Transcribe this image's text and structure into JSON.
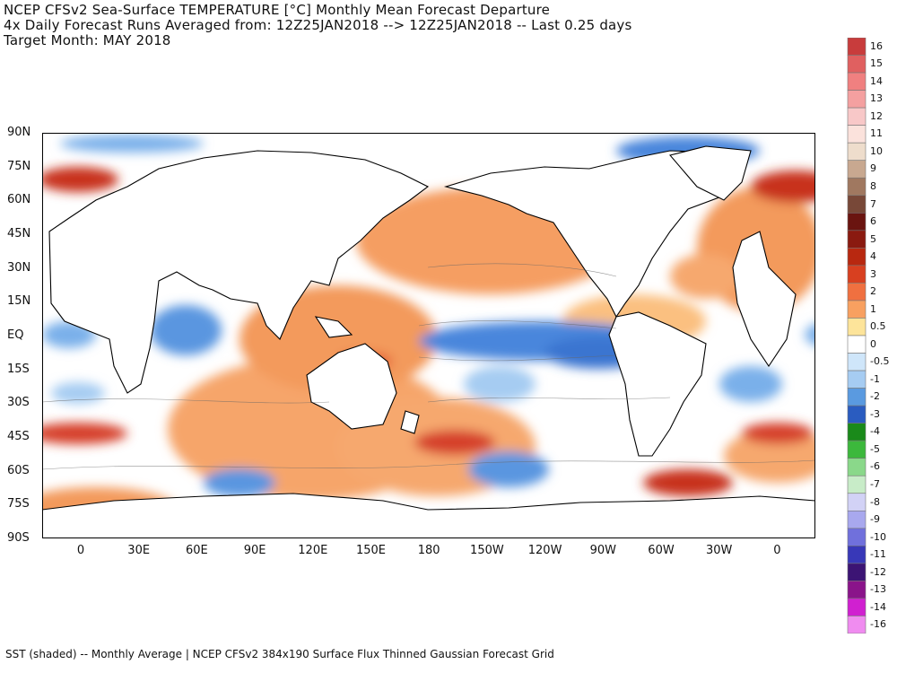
{
  "header": {
    "line1": "NCEP CFSv2 Sea-Surface TEMPERATURE [°C] Monthly Mean Forecast Departure",
    "line2": "4x Daily Forecast Runs Averaged from: 12Z25JAN2018 --> 12Z25JAN2018 -- Last 0.25 days",
    "line3": "Target Month: MAY 2018"
  },
  "footer": "SST (shaded) -- Monthly Average | NCEP CFSv2 384x190 Surface Flux Thinned Gaussian Forecast Grid",
  "lat_labels": [
    "90N",
    "75N",
    "60N",
    "45N",
    "30N",
    "15N",
    "EQ",
    "15S",
    "30S",
    "45S",
    "60S",
    "75S",
    "90S"
  ],
  "lon_labels": [
    "0",
    "30E",
    "60E",
    "90E",
    "120E",
    "150E",
    "180",
    "150W",
    "120W",
    "90W",
    "60W",
    "30W",
    "0"
  ],
  "colorbar": {
    "labels": [
      "16",
      "15",
      "14",
      "13",
      "12",
      "11",
      "10",
      "9",
      "8",
      "7",
      "6",
      "5",
      "4",
      "3",
      "2",
      "1",
      "0.5",
      "0",
      "-0.5",
      "-1",
      "-2",
      "-3",
      "-4",
      "-5",
      "-6",
      "-7",
      "-8",
      "-9",
      "-10",
      "-11",
      "-12",
      "-13",
      "-14",
      "-16"
    ],
    "colors": [
      "#c83c3c",
      "#e06060",
      "#f08080",
      "#f4a0a0",
      "#f8c8c8",
      "#fbe2dc",
      "#eeddcc",
      "#c8a890",
      "#a07860",
      "#784838",
      "#6a1410",
      "#8a1a10",
      "#b82810",
      "#d84020",
      "#f07040",
      "#f8a060",
      "#fde49a",
      "#ffffff",
      "#cfe6fa",
      "#a6ccf2",
      "#5a9ae0",
      "#2a5cc0",
      "#1a8a1a",
      "#3cb83c",
      "#8ad88a",
      "#c8ecc8",
      "#d2d2f6",
      "#a8a8ee",
      "#7070dc",
      "#3838b8",
      "#3c1474",
      "#8a148a",
      "#d020d0",
      "#f08cf0"
    ]
  },
  "map_regions": {
    "equatorial_pacific_cold": "#4a86dc",
    "warm_band": "#f3955a",
    "strong_warm": "#c8321e",
    "mild_warm": "#fbd190",
    "cool": "#a6ccf2",
    "land": "#ffffff"
  }
}
